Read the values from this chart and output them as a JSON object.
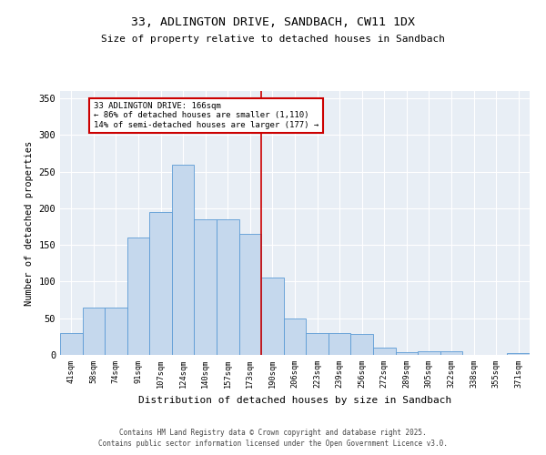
{
  "title": "33, ADLINGTON DRIVE, SANDBACH, CW11 1DX",
  "subtitle": "Size of property relative to detached houses in Sandbach",
  "xlabel": "Distribution of detached houses by size in Sandbach",
  "ylabel": "Number of detached properties",
  "categories": [
    "41sqm",
    "58sqm",
    "74sqm",
    "91sqm",
    "107sqm",
    "124sqm",
    "140sqm",
    "157sqm",
    "173sqm",
    "190sqm",
    "206sqm",
    "223sqm",
    "239sqm",
    "256sqm",
    "272sqm",
    "289sqm",
    "305sqm",
    "322sqm",
    "338sqm",
    "355sqm",
    "371sqm"
  ],
  "values": [
    30,
    65,
    65,
    160,
    195,
    260,
    185,
    185,
    165,
    105,
    50,
    30,
    30,
    28,
    10,
    4,
    5,
    5,
    0,
    0,
    2
  ],
  "bar_color": "#c5d8ed",
  "bar_edge_color": "#5b9bd5",
  "vline_x": 8.5,
  "vline_color": "#cc0000",
  "annotation_title": "33 ADLINGTON DRIVE: 166sqm",
  "annotation_line1": "← 86% of detached houses are smaller (1,110)",
  "annotation_line2": "14% of semi-detached houses are larger (177) →",
  "annotation_box_color": "#cc0000",
  "ylim": [
    0,
    360
  ],
  "yticks": [
    0,
    50,
    100,
    150,
    200,
    250,
    300,
    350
  ],
  "background_color": "#e8eef5",
  "footer_line1": "Contains HM Land Registry data © Crown copyright and database right 2025.",
  "footer_line2": "Contains public sector information licensed under the Open Government Licence v3.0."
}
